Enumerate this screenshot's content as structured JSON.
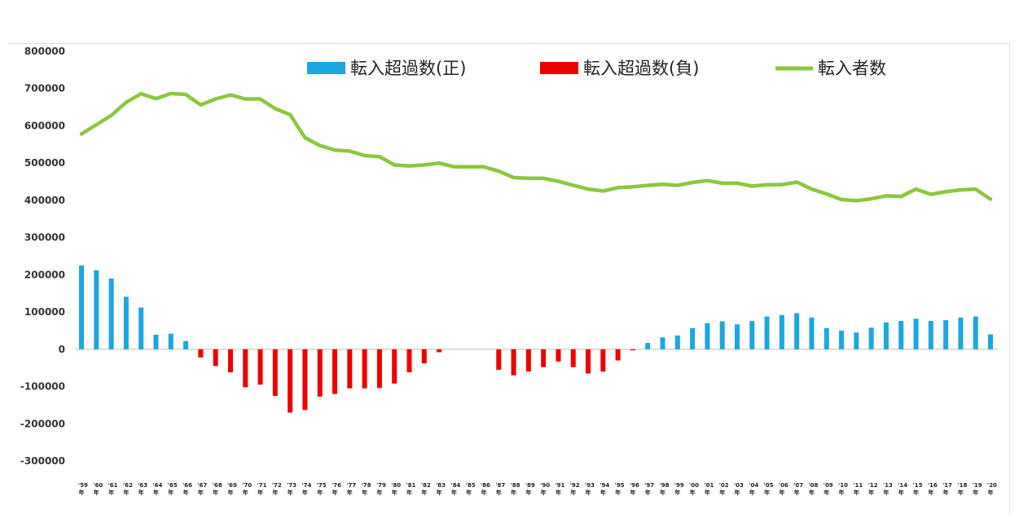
{
  "chart_data": {
    "type": "bar",
    "categories": [
      "'59",
      "'60",
      "'61",
      "'62",
      "'63",
      "'64",
      "'65",
      "'66",
      "'67",
      "'68",
      "'69",
      "'70",
      "'71",
      "'72",
      "'73",
      "'74",
      "'75",
      "'76",
      "'77",
      "'78",
      "'79",
      "'80",
      "'81",
      "'82",
      "'83",
      "'84",
      "'85",
      "'86",
      "'87",
      "'88",
      "'89",
      "'90",
      "'91",
      "'92",
      "'93",
      "'94",
      "'95",
      "'96",
      "'97",
      "'98",
      "'99",
      "'00",
      "'01",
      "'02",
      "'03",
      "'04",
      "'05",
      "'06",
      "'07",
      "'08",
      "'09",
      "'10",
      "'11",
      "'12",
      "'13",
      "'14",
      "'15",
      "'16",
      "'17",
      "'18",
      "'19",
      "'20"
    ],
    "year_suffix": "年",
    "series": [
      {
        "name": "転入超過数(正)",
        "kind": "bar",
        "color": "#1AA7E2"
      },
      {
        "name": "転入超過数(負)",
        "kind": "bar",
        "color": "#EE0000"
      },
      {
        "name": "転入者数",
        "kind": "line",
        "color": "#8CC63F"
      }
    ],
    "net_migration": [
      225000,
      212000,
      190000,
      141000,
      112000,
      39000,
      42000,
      22000,
      -22000,
      -45000,
      -62000,
      -102000,
      -95000,
      -125000,
      -170000,
      -163000,
      -127000,
      -120000,
      -105000,
      -105000,
      -104000,
      -92000,
      -62000,
      -38000,
      -8000,
      0,
      0,
      0,
      -55000,
      -70000,
      -60000,
      -48000,
      -33000,
      -48000,
      -65000,
      -60000,
      -30000,
      -3000,
      17000,
      32000,
      37000,
      57000,
      70000,
      75000,
      67000,
      76000,
      88000,
      92000,
      97000,
      85000,
      57000,
      50000,
      45000,
      58000,
      72000,
      76000,
      82000,
      76000,
      78000,
      85000,
      88000,
      40000
    ],
    "inflow": [
      578000,
      603000,
      628000,
      663000,
      686000,
      673000,
      687000,
      684000,
      656000,
      672000,
      683000,
      672000,
      672000,
      646000,
      630000,
      568000,
      547000,
      535000,
      532000,
      520000,
      517000,
      495000,
      492000,
      495000,
      500000,
      490000,
      490000,
      490000,
      478000,
      461000,
      459000,
      459000,
      451000,
      440000,
      430000,
      425000,
      434000,
      436000,
      440000,
      443000,
      440000,
      448000,
      453000,
      446000,
      446000,
      438000,
      442000,
      442000,
      449000,
      430000,
      417000,
      402000,
      399000,
      404000,
      412000,
      410000,
      430000,
      416000,
      423000,
      428000,
      430000,
      403000
    ],
    "ylim": [
      -300000,
      800000
    ],
    "yticks": [
      800000,
      700000,
      600000,
      500000,
      400000,
      300000,
      200000,
      100000,
      0,
      -100000,
      -200000,
      -300000
    ],
    "grid": false,
    "legend_position": "top"
  }
}
